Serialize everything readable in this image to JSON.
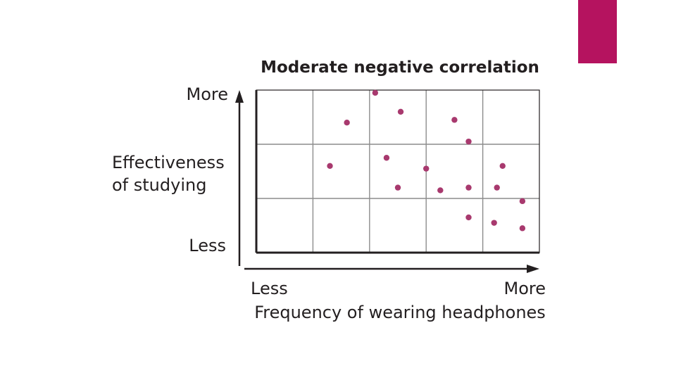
{
  "slide": {
    "accent_color": "#b5135f"
  },
  "chart_data": {
    "type": "scatter",
    "title": "Moderate negative correlation",
    "xlabel": "Frequency of wearing headphones",
    "ylabel_line1": "Effectiveness",
    "ylabel_line2": "of studying",
    "x_low_label": "Less",
    "x_high_label": "More",
    "y_low_label": "Less",
    "y_high_label": "More",
    "xlim": [
      0,
      5
    ],
    "ylim": [
      0,
      3
    ],
    "grid": true,
    "point_color": "#a8396e",
    "points": [
      {
        "x": 2.1,
        "y": 2.95
      },
      {
        "x": 1.6,
        "y": 2.4
      },
      {
        "x": 2.55,
        "y": 2.6
      },
      {
        "x": 3.5,
        "y": 2.45
      },
      {
        "x": 3.75,
        "y": 2.05
      },
      {
        "x": 1.3,
        "y": 1.6
      },
      {
        "x": 2.3,
        "y": 1.75
      },
      {
        "x": 3.0,
        "y": 1.55
      },
      {
        "x": 4.35,
        "y": 1.6
      },
      {
        "x": 2.5,
        "y": 1.2
      },
      {
        "x": 3.25,
        "y": 1.15
      },
      {
        "x": 3.75,
        "y": 1.2
      },
      {
        "x": 4.25,
        "y": 1.2
      },
      {
        "x": 4.7,
        "y": 0.95
      },
      {
        "x": 3.75,
        "y": 0.65
      },
      {
        "x": 4.2,
        "y": 0.55
      },
      {
        "x": 4.7,
        "y": 0.45
      }
    ]
  }
}
